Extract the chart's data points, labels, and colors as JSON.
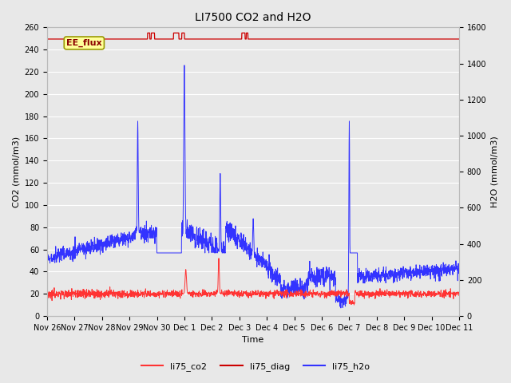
{
  "title": "LI7500 CO2 and H2O",
  "xlabel": "Time",
  "ylabel_left": "CO2 (mmol/m3)",
  "ylabel_right": "H2O (mmol/m3)",
  "ylim_left": [
    0,
    260
  ],
  "ylim_right": [
    0,
    1600
  ],
  "yticks_left": [
    0,
    20,
    40,
    60,
    80,
    100,
    120,
    140,
    160,
    180,
    200,
    220,
    240,
    260
  ],
  "yticks_right": [
    0,
    200,
    400,
    600,
    800,
    1000,
    1200,
    1400,
    1600
  ],
  "xtick_labels": [
    "Nov 26",
    "Nov 27",
    "Nov 28",
    "Nov 29",
    "Nov 30",
    "Dec 1",
    "Dec 2",
    "Dec 3",
    "Dec 4",
    "Dec 5",
    "Dec 6",
    "Dec 7",
    "Dec 8",
    "Dec 9",
    "Dec 10",
    "Dec 11"
  ],
  "xtick_positions": [
    0,
    1,
    2,
    3,
    4,
    5,
    6,
    7,
    8,
    9,
    10,
    11,
    12,
    13,
    14,
    15
  ],
  "xlim": [
    0,
    15
  ],
  "color_co2": "#FF3333",
  "color_diag": "#CC0000",
  "color_h2o": "#3333FF",
  "fig_bg_color": "#E8E8E8",
  "plot_bg_color": "#E8E8E8",
  "grid_color": "#FFFFFF",
  "legend_labels": [
    "li75_co2",
    "li75_diag",
    "li75_h2o"
  ],
  "ee_flux_label": "EE_flux",
  "ee_flux_bg": "#FFFF99",
  "ee_flux_edge": "#999900",
  "title_fontsize": 10,
  "axis_fontsize": 8,
  "tick_fontsize": 7,
  "legend_fontsize": 8
}
